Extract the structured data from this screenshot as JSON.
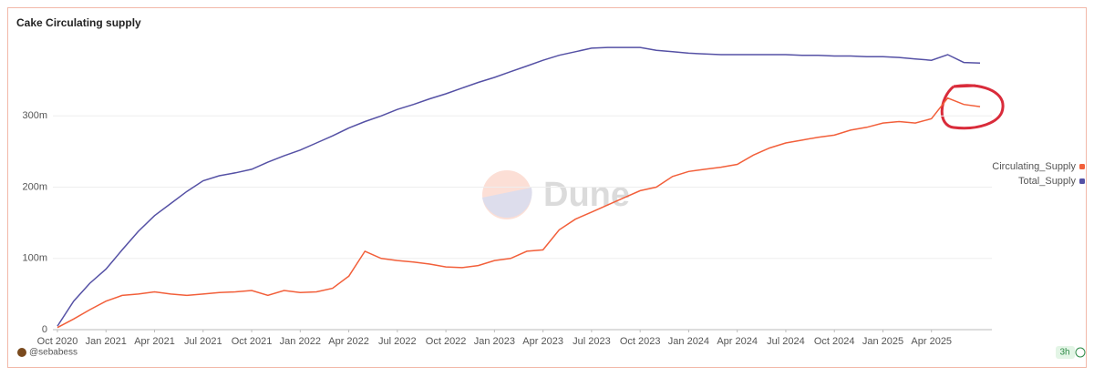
{
  "chart_data": {
    "type": "line",
    "title": "Cake Circulating supply",
    "x": [
      "2020-10",
      "2020-11",
      "2020-12",
      "2021-01",
      "2021-02",
      "2021-03",
      "2021-04",
      "2021-05",
      "2021-06",
      "2021-07",
      "2021-08",
      "2021-09",
      "2021-10",
      "2021-11",
      "2021-12",
      "2022-01",
      "2022-02",
      "2022-03",
      "2022-04",
      "2022-05",
      "2022-06",
      "2022-07",
      "2022-08",
      "2022-09",
      "2022-10",
      "2022-11",
      "2022-12",
      "2023-01",
      "2023-02",
      "2023-03",
      "2023-04",
      "2023-05",
      "2023-06",
      "2023-07",
      "2023-08",
      "2023-09",
      "2023-10",
      "2023-11",
      "2023-12",
      "2024-01",
      "2024-02",
      "2024-03",
      "2024-04",
      "2024-05",
      "2024-06",
      "2024-07",
      "2024-08",
      "2024-09",
      "2024-10",
      "2024-11",
      "2024-12",
      "2025-01",
      "2025-02",
      "2025-03",
      "2025-04",
      "2025-05",
      "2025-06",
      "2025-07"
    ],
    "series": [
      {
        "name": "Circulating_Supply",
        "color": "#f25f3a",
        "values": [
          3000000,
          15000000,
          28000000,
          40000000,
          48000000,
          50000000,
          53000000,
          50000000,
          48000000,
          50000000,
          52000000,
          53000000,
          55000000,
          48000000,
          55000000,
          52000000,
          53000000,
          58000000,
          75000000,
          110000000,
          100000000,
          97000000,
          95000000,
          92000000,
          88000000,
          87000000,
          90000000,
          97000000,
          100000000,
          110000000,
          112000000,
          140000000,
          155000000,
          165000000,
          175000000,
          185000000,
          195000000,
          200000000,
          215000000,
          222000000,
          225000000,
          228000000,
          232000000,
          245000000,
          255000000,
          262000000,
          266000000,
          270000000,
          273000000,
          280000000,
          284000000,
          290000000,
          292000000,
          290000000,
          296000000,
          325000000,
          316000000,
          313000000
        ]
      },
      {
        "name": "Total_Supply",
        "color": "#5551a5",
        "values": [
          5000000,
          40000000,
          65000000,
          85000000,
          112000000,
          138000000,
          160000000,
          177000000,
          194000000,
          209000000,
          216000000,
          220000000,
          225000000,
          235000000,
          244000000,
          252000000,
          262000000,
          272000000,
          283000000,
          292000000,
          300000000,
          309000000,
          316000000,
          324000000,
          331000000,
          339000000,
          347000000,
          354000000,
          362000000,
          370000000,
          378000000,
          385000000,
          390000000,
          395000000,
          396000000,
          396000000,
          396000000,
          392000000,
          390000000,
          388000000,
          387000000,
          386000000,
          386000000,
          386000000,
          386000000,
          386000000,
          385000000,
          385000000,
          384000000,
          384000000,
          383000000,
          383000000,
          382000000,
          380000000,
          378000000,
          386000000,
          375000000,
          374000000
        ]
      }
    ],
    "xlim": [
      "2020-10",
      "2025-07"
    ],
    "xticks": [
      {
        "value": "2020-10",
        "label": "Oct 2020"
      },
      {
        "value": "2021-01",
        "label": "Jan 2021"
      },
      {
        "value": "2021-04",
        "label": "Apr 2021"
      },
      {
        "value": "2021-07",
        "label": "Jul 2021"
      },
      {
        "value": "2021-10",
        "label": "Oct 2021"
      },
      {
        "value": "2022-01",
        "label": "Jan 2022"
      },
      {
        "value": "2022-04",
        "label": "Apr 2022"
      },
      {
        "value": "2022-07",
        "label": "Jul 2022"
      },
      {
        "value": "2022-10",
        "label": "Oct 2022"
      },
      {
        "value": "2023-01",
        "label": "Jan 2023"
      },
      {
        "value": "2023-04",
        "label": "Apr 2023"
      },
      {
        "value": "2023-07",
        "label": "Jul 2023"
      },
      {
        "value": "2023-10",
        "label": "Oct 2023"
      },
      {
        "value": "2024-01",
        "label": "Jan 2024"
      },
      {
        "value": "2024-04",
        "label": "Apr 2024"
      },
      {
        "value": "2024-07",
        "label": "Jul 2024"
      },
      {
        "value": "2024-10",
        "label": "Oct 2024"
      },
      {
        "value": "2025-01",
        "label": "Jan 2025"
      },
      {
        "value": "2025-04",
        "label": "Apr 2025"
      }
    ],
    "ylim": [
      0,
      400000000
    ],
    "yticks": [
      0,
      {
        "value": 100000000,
        "label": "100m"
      },
      {
        "value": 200000000,
        "label": "200m"
      },
      {
        "value": 300000000,
        "label": "300m"
      }
    ],
    "grid": true,
    "legend": "right",
    "watermark": "Dune",
    "author": "@sebabess",
    "age": "3h"
  }
}
